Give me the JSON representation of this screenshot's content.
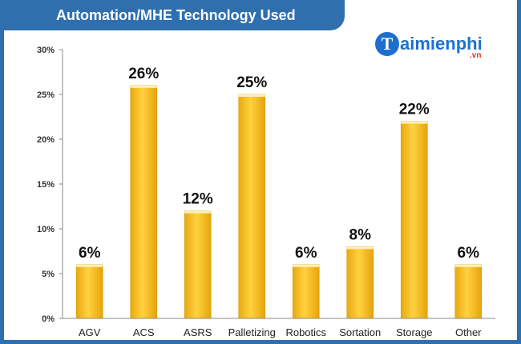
{
  "chart_data": {
    "type": "bar",
    "title": "Automation/MHE Technology Used",
    "categories": [
      "AGV",
      "ACS",
      "ASRS",
      "Palletizing",
      "Robotics",
      "Sortation",
      "Storage",
      "Other"
    ],
    "values": [
      6,
      26,
      12,
      25,
      6,
      8,
      22,
      6
    ],
    "data_labels": [
      "6%",
      "26%",
      "12%",
      "25%",
      "6%",
      "8%",
      "22%",
      "6%"
    ],
    "yticks": [
      0,
      5,
      10,
      15,
      20,
      25,
      30
    ],
    "ytick_labels": [
      "0%",
      "5%",
      "10%",
      "15%",
      "20%",
      "25%",
      "30%"
    ],
    "ylim": [
      0,
      30
    ],
    "xlabel": "",
    "ylabel": "",
    "grid": false,
    "bar_color": "#f5bd1f"
  },
  "watermark": {
    "mark": "T",
    "text": "aimienphi",
    "sub": ".vn"
  },
  "colors": {
    "frame": "#2f6fae",
    "axis": "#888888"
  }
}
